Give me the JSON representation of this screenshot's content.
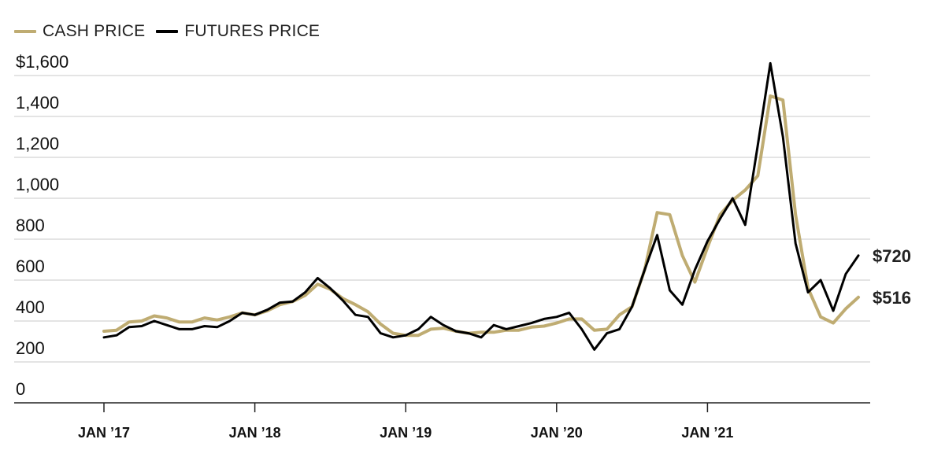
{
  "chart_data": {
    "type": "line",
    "legend_position": "top-left",
    "grid": true,
    "ylim": [
      0,
      1600
    ],
    "y_ticks": [
      {
        "value": 1600,
        "label": "$1,600"
      },
      {
        "value": 1400,
        "label": "1,400"
      },
      {
        "value": 1200,
        "label": "1,200"
      },
      {
        "value": 1000,
        "label": "1,000"
      },
      {
        "value": 800,
        "label": "800"
      },
      {
        "value": 600,
        "label": "600"
      },
      {
        "value": 400,
        "label": "400"
      },
      {
        "value": 200,
        "label": "200"
      },
      {
        "value": 0,
        "label": "0"
      }
    ],
    "xlim": [
      "2017-01",
      "2021-10"
    ],
    "x_ticks": [
      {
        "date": "2017-01",
        "label": "JAN ’17"
      },
      {
        "date": "2018-01",
        "label": "JAN ’18"
      },
      {
        "date": "2019-01",
        "label": "JAN ’19"
      },
      {
        "date": "2020-01",
        "label": "JAN ’20"
      },
      {
        "date": "2021-01",
        "label": "JAN ’21"
      }
    ],
    "series": [
      {
        "name": "CASH PRICE",
        "color": "#bfac72",
        "end_label": "$516",
        "points": [
          [
            "2017-01",
            350
          ],
          [
            "2017-02",
            355
          ],
          [
            "2017-03",
            395
          ],
          [
            "2017-04",
            400
          ],
          [
            "2017-05",
            425
          ],
          [
            "2017-06",
            415
          ],
          [
            "2017-07",
            395
          ],
          [
            "2017-08",
            395
          ],
          [
            "2017-09",
            415
          ],
          [
            "2017-10",
            405
          ],
          [
            "2017-11",
            420
          ],
          [
            "2017-12",
            440
          ],
          [
            "2018-01",
            430
          ],
          [
            "2018-02",
            450
          ],
          [
            "2018-03",
            480
          ],
          [
            "2018-04",
            495
          ],
          [
            "2018-05",
            525
          ],
          [
            "2018-06",
            580
          ],
          [
            "2018-07",
            555
          ],
          [
            "2018-08",
            510
          ],
          [
            "2018-09",
            480
          ],
          [
            "2018-10",
            445
          ],
          [
            "2018-11",
            385
          ],
          [
            "2018-12",
            340
          ],
          [
            "2019-01",
            330
          ],
          [
            "2019-02",
            330
          ],
          [
            "2019-03",
            360
          ],
          [
            "2019-04",
            365
          ],
          [
            "2019-05",
            350
          ],
          [
            "2019-06",
            340
          ],
          [
            "2019-07",
            345
          ],
          [
            "2019-08",
            345
          ],
          [
            "2019-09",
            355
          ],
          [
            "2019-10",
            355
          ],
          [
            "2019-11",
            370
          ],
          [
            "2019-12",
            375
          ],
          [
            "2020-01",
            390
          ],
          [
            "2020-02",
            410
          ],
          [
            "2020-03",
            410
          ],
          [
            "2020-04",
            355
          ],
          [
            "2020-05",
            360
          ],
          [
            "2020-06",
            430
          ],
          [
            "2020-07",
            470
          ],
          [
            "2020-08",
            650
          ],
          [
            "2020-09",
            930
          ],
          [
            "2020-10",
            920
          ],
          [
            "2020-11",
            720
          ],
          [
            "2020-12",
            590
          ],
          [
            "2021-01",
            760
          ],
          [
            "2021-02",
            920
          ],
          [
            "2021-03",
            990
          ],
          [
            "2021-04",
            1040
          ],
          [
            "2021-05",
            1110
          ],
          [
            "2021-06",
            1500
          ],
          [
            "2021-07",
            1480
          ],
          [
            "2021-08",
            920
          ],
          [
            "2021-09",
            560
          ],
          [
            "2021-10",
            420
          ],
          [
            "2021-11",
            390
          ],
          [
            "2021-12",
            460
          ],
          [
            "2022-01",
            516
          ]
        ]
      },
      {
        "name": "FUTURES PRICE",
        "color": "#000000",
        "end_label": "$720",
        "points": [
          [
            "2017-01",
            320
          ],
          [
            "2017-02",
            330
          ],
          [
            "2017-03",
            370
          ],
          [
            "2017-04",
            375
          ],
          [
            "2017-05",
            400
          ],
          [
            "2017-06",
            380
          ],
          [
            "2017-07",
            360
          ],
          [
            "2017-08",
            360
          ],
          [
            "2017-09",
            375
          ],
          [
            "2017-10",
            370
          ],
          [
            "2017-11",
            400
          ],
          [
            "2017-12",
            440
          ],
          [
            "2018-01",
            430
          ],
          [
            "2018-02",
            455
          ],
          [
            "2018-03",
            490
          ],
          [
            "2018-04",
            495
          ],
          [
            "2018-05",
            540
          ],
          [
            "2018-06",
            610
          ],
          [
            "2018-07",
            560
          ],
          [
            "2018-08",
            500
          ],
          [
            "2018-09",
            430
          ],
          [
            "2018-10",
            420
          ],
          [
            "2018-11",
            340
          ],
          [
            "2018-12",
            320
          ],
          [
            "2019-01",
            330
          ],
          [
            "2019-02",
            360
          ],
          [
            "2019-03",
            420
          ],
          [
            "2019-04",
            380
          ],
          [
            "2019-05",
            350
          ],
          [
            "2019-06",
            340
          ],
          [
            "2019-07",
            320
          ],
          [
            "2019-08",
            380
          ],
          [
            "2019-09",
            360
          ],
          [
            "2019-10",
            375
          ],
          [
            "2019-11",
            390
          ],
          [
            "2019-12",
            410
          ],
          [
            "2020-01",
            420
          ],
          [
            "2020-02",
            440
          ],
          [
            "2020-03",
            360
          ],
          [
            "2020-04",
            260
          ],
          [
            "2020-05",
            340
          ],
          [
            "2020-06",
            360
          ],
          [
            "2020-07",
            470
          ],
          [
            "2020-08",
            650
          ],
          [
            "2020-09",
            820
          ],
          [
            "2020-10",
            550
          ],
          [
            "2020-11",
            480
          ],
          [
            "2020-12",
            650
          ],
          [
            "2021-01",
            790
          ],
          [
            "2021-02",
            900
          ],
          [
            "2021-03",
            1000
          ],
          [
            "2021-04",
            870
          ],
          [
            "2021-05",
            1260
          ],
          [
            "2021-06",
            1660
          ],
          [
            "2021-07",
            1300
          ],
          [
            "2021-08",
            780
          ],
          [
            "2021-09",
            540
          ],
          [
            "2021-10",
            600
          ],
          [
            "2021-11",
            450
          ],
          [
            "2021-12",
            630
          ],
          [
            "2022-01",
            720
          ]
        ]
      }
    ]
  }
}
